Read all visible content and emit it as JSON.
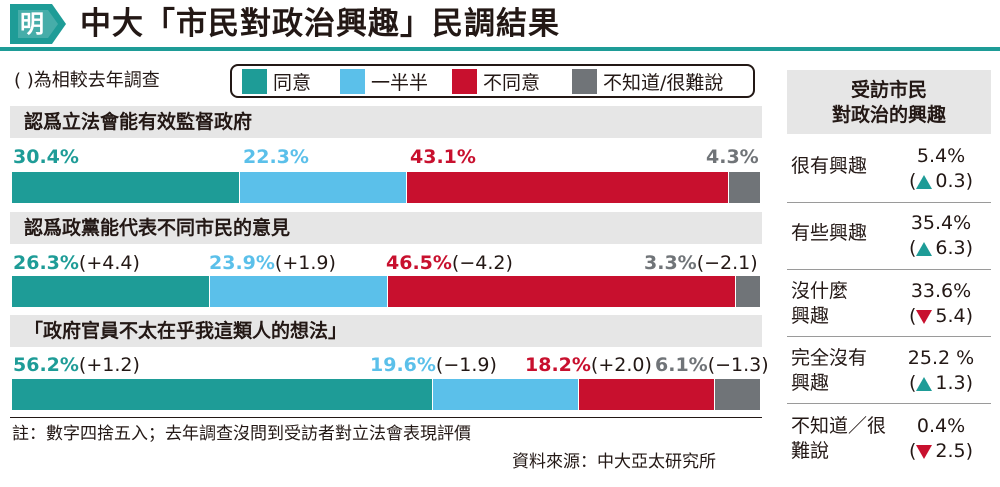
{
  "header": {
    "logo_text": "明",
    "title": "中大「市民對政治興趣」民調結果"
  },
  "note": "( )為相較去年調查",
  "colors": {
    "teal": "#1e9c97",
    "light_blue": "#5bc0ea",
    "red": "#c8102e",
    "grey": "#707478"
  },
  "chart_data": {
    "type": "bar",
    "stacked": true,
    "horizontal": true,
    "legend": [
      "同意",
      "一半半",
      "不同意",
      "不知道/很難說"
    ],
    "legend_placement": "top",
    "categories": [
      "認爲立法會能有效監督政府",
      "認爲政黨能代表不同市民的意見",
      "「政府官員不太在乎我這類人的想法」"
    ],
    "series": [
      {
        "name": "同意",
        "values": [
          30.4,
          26.3,
          56.2
        ],
        "labels": [
          "30.4%",
          "26.3%",
          "56.2%"
        ],
        "changes": [
          "",
          "(+4.4)",
          "(+1.2)"
        ]
      },
      {
        "name": "一半半",
        "values": [
          22.3,
          23.9,
          19.6
        ],
        "labels": [
          "22.3%",
          "23.9%",
          "19.6%"
        ],
        "changes": [
          "",
          "(+1.9)",
          "(−1.9)"
        ]
      },
      {
        "name": "不同意",
        "values": [
          43.1,
          46.5,
          18.2
        ],
        "labels": [
          "43.1%",
          "46.5%",
          "18.2%"
        ],
        "changes": [
          "",
          "(−4.2)",
          "(+2.0)"
        ]
      },
      {
        "name": "不知道/很難說",
        "values": [
          4.3,
          3.3,
          6.1
        ],
        "labels": [
          "4.3%",
          "3.3%",
          "6.1%"
        ],
        "changes": [
          "",
          "(−2.1)",
          "(−1.3)"
        ]
      }
    ]
  },
  "sidebar": {
    "title_line1": "受訪市民",
    "title_line2": "對政治的興趣",
    "rows": [
      {
        "label": "很有興趣",
        "pct": "5.4%",
        "change": "0.3",
        "direction": "up"
      },
      {
        "label": "有些興趣",
        "pct": "35.4%",
        "change": "6.3",
        "direction": "up"
      },
      {
        "label": "沒什麼興趣",
        "pct": "33.6%",
        "change": "5.4",
        "direction": "down"
      },
      {
        "label": "完全沒有興趣",
        "pct": "25.2 %",
        "change": "1.3",
        "direction": "up"
      },
      {
        "label": "不知道／很難說",
        "pct": "0.4%",
        "change": "2.5",
        "direction": "down"
      }
    ]
  },
  "footer": {
    "note": "註：數字四捨五入；去年調查沒問到受訪者對立法會表現評價",
    "source": "資料來源：中大亞太研究所"
  }
}
